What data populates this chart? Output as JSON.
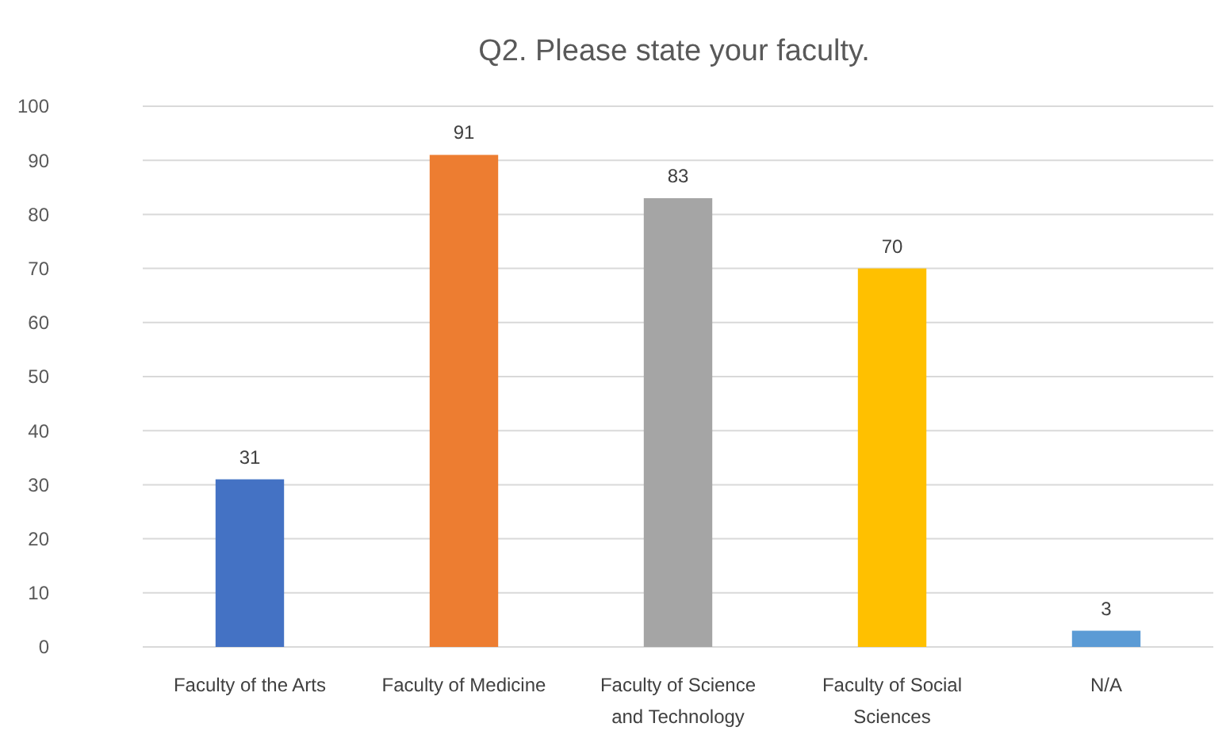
{
  "chart_data": {
    "type": "bar",
    "title": "Q2. Please state your faculty.",
    "categories": [
      "Faculty of the Arts",
      "Faculty of Medicine",
      "Faculty of Science and Technology",
      "Faculty of Social Sciences",
      "N/A"
    ],
    "values": [
      31,
      91,
      83,
      70,
      3
    ],
    "colors": [
      "#4472c4",
      "#ed7d31",
      "#a5a5a5",
      "#ffc000",
      "#5b9bd5"
    ],
    "ylim": [
      0,
      100
    ],
    "yticks": [
      0,
      10,
      20,
      30,
      40,
      50,
      60,
      70,
      80,
      90,
      100
    ],
    "grid": "y",
    "data_labels": true
  }
}
